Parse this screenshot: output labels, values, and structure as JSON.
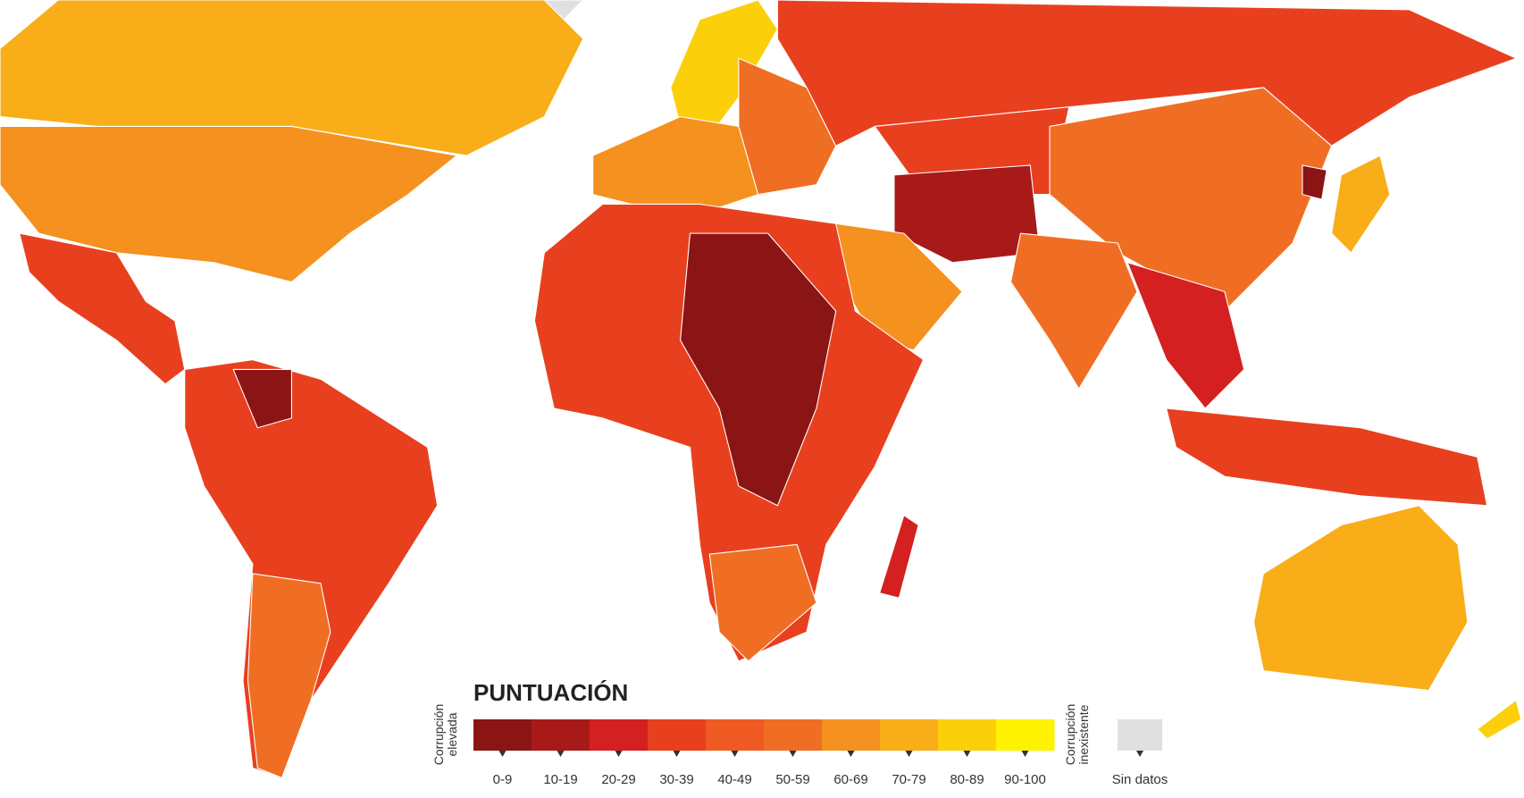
{
  "legend": {
    "title": "PUNTUACIÓN",
    "low_label": [
      "Corrupción",
      "elevada"
    ],
    "high_label": [
      "Corrupción",
      "inexistente"
    ],
    "no_data_label": "Sin datos",
    "no_data_color": "#e0e0e0",
    "ranges": [
      {
        "label": "0-9",
        "color": "#8b1414"
      },
      {
        "label": "10-19",
        "color": "#a81a1a"
      },
      {
        "label": "20-29",
        "color": "#d42020"
      },
      {
        "label": "30-39",
        "color": "#e8401f"
      },
      {
        "label": "40-49",
        "color": "#ef5a22"
      },
      {
        "label": "50-59",
        "color": "#f06e23"
      },
      {
        "label": "60-69",
        "color": "#f5911e"
      },
      {
        "label": "70-79",
        "color": "#f8ad19"
      },
      {
        "label": "80-89",
        "color": "#fbd00a"
      },
      {
        "label": "90-100",
        "color": "#fff200"
      }
    ]
  }
}
